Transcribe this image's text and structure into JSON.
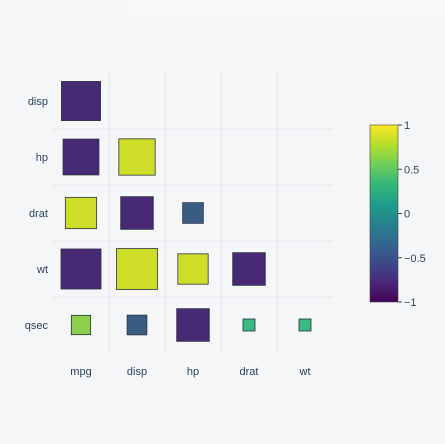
{
  "chart_data": {
    "type": "heatmap",
    "title": "",
    "xlabel": "",
    "ylabel": "",
    "x_categories": [
      "mpg",
      "disp",
      "hp",
      "drat",
      "wt"
    ],
    "y_categories": [
      "disp",
      "hp",
      "drat",
      "wt",
      "qsec"
    ],
    "cells": [
      {
        "row": "disp",
        "col": "mpg",
        "value": -0.85
      },
      {
        "row": "hp",
        "col": "mpg",
        "value": -0.78
      },
      {
        "row": "hp",
        "col": "disp",
        "value": 0.79
      },
      {
        "row": "drat",
        "col": "mpg",
        "value": 0.68
      },
      {
        "row": "drat",
        "col": "disp",
        "value": -0.71
      },
      {
        "row": "drat",
        "col": "hp",
        "value": -0.45
      },
      {
        "row": "wt",
        "col": "mpg",
        "value": -0.87
      },
      {
        "row": "wt",
        "col": "disp",
        "value": 0.89
      },
      {
        "row": "wt",
        "col": "hp",
        "value": 0.66
      },
      {
        "row": "wt",
        "col": "drat",
        "value": -0.71
      },
      {
        "row": "qsec",
        "col": "mpg",
        "value": 0.42
      },
      {
        "row": "qsec",
        "col": "disp",
        "value": -0.43
      },
      {
        "row": "qsec",
        "col": "hp",
        "value": -0.71
      },
      {
        "row": "qsec",
        "col": "drat",
        "value": 0.09
      },
      {
        "row": "qsec",
        "col": "wt",
        "value": -0.17
      }
    ],
    "size_encodes": "absolute value",
    "colorscale": "viridis",
    "colorscale_stops": [
      "#440154",
      "#482878",
      "#3e4989",
      "#31688e",
      "#26828e",
      "#1f9e89",
      "#35b779",
      "#6ece58",
      "#b5de2b",
      "#fde725"
    ],
    "display_palette": [
      "#462a73",
      "#3a5c83",
      "#3aba83",
      "#8ccf4c",
      "#cddd28"
    ],
    "colorbar": {
      "range": [
        -1,
        1
      ],
      "ticks": [
        "1",
        "0.5",
        "0",
        "−0.5",
        "−1"
      ]
    },
    "grid": true,
    "legend": "colorbar right"
  }
}
